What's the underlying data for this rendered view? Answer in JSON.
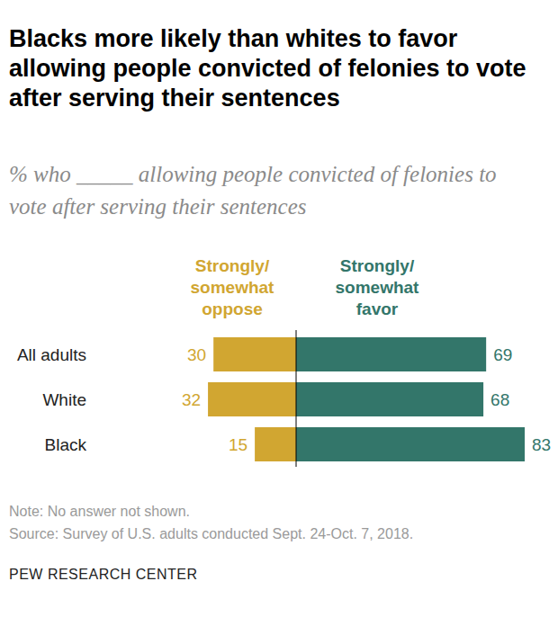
{
  "chart_data": {
    "type": "bar",
    "orientation": "horizontal",
    "title": "Blacks more likely than whites to favor allowing people convicted of felonies to vote after serving their sentences",
    "subtitle": "% who _____ allowing people convicted of felonies to vote after serving their sentences",
    "categories": [
      "All adults",
      "White",
      "Black"
    ],
    "series": [
      {
        "name": "Strongly/ somewhat oppose",
        "color": "#d1a631",
        "values": [
          30,
          32,
          15
        ]
      },
      {
        "name": "Strongly/ somewhat favor",
        "color": "#33766a",
        "values": [
          69,
          68,
          83
        ]
      }
    ],
    "data_labels": true,
    "tick_labels": false,
    "note": "Note: No answer not shown.",
    "source": "Source: Survey of U.S. adults conducted Sept. 24-Oct. 7, 2018.",
    "credit": "PEW RESEARCH CENTER"
  }
}
